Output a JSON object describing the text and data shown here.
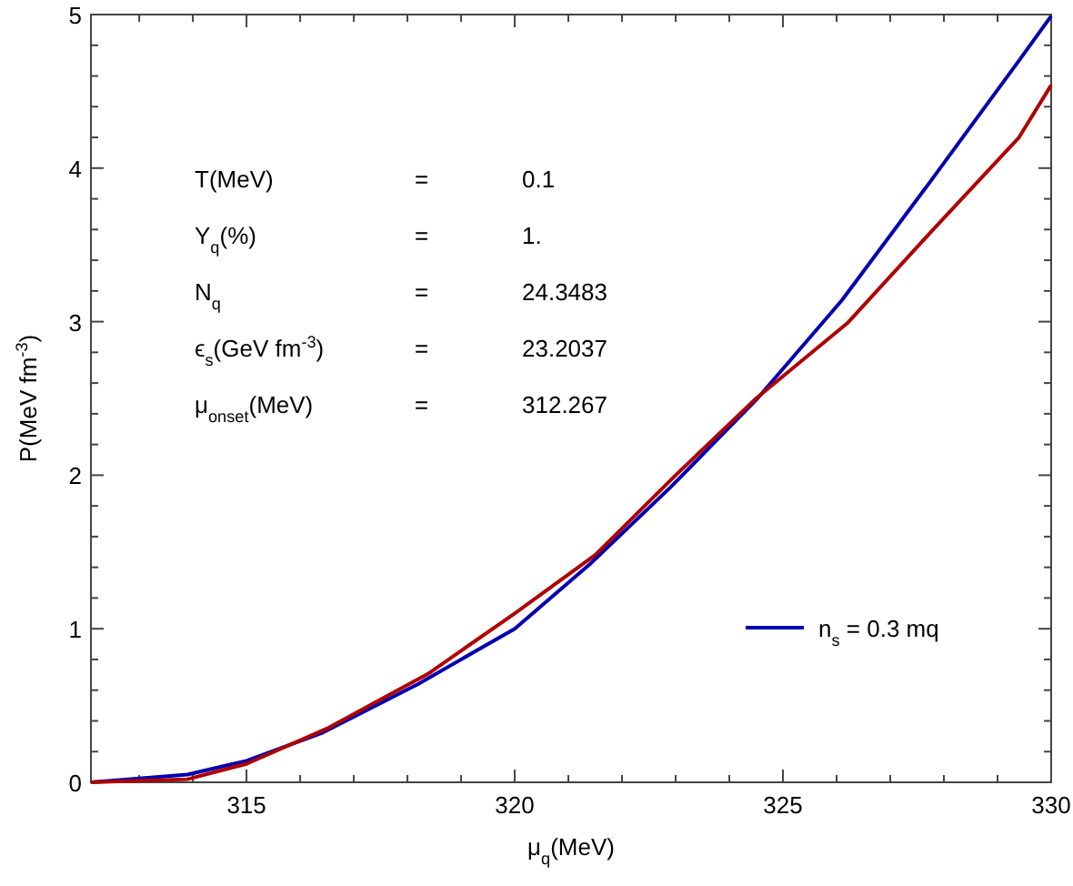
{
  "chart_data": {
    "type": "line",
    "xlabel": "μ$_{q}$(MeV)",
    "ylabel": "P(MeV fm$^{-3}$)",
    "xlim": [
      312.1,
      330
    ],
    "ylim": [
      0,
      5
    ],
    "xticks": [
      {
        "value": 313,
        "label": null
      },
      {
        "value": 314,
        "label": null
      },
      315,
      {
        "value": 316,
        "label": null
      },
      {
        "value": 317,
        "label": null
      },
      {
        "value": 318,
        "label": null
      },
      {
        "value": 319,
        "label": null
      },
      320,
      {
        "value": 321,
        "label": null
      },
      {
        "value": 322,
        "label": null
      },
      {
        "value": 323,
        "label": null
      },
      {
        "value": 324,
        "label": null
      },
      325,
      {
        "value": 326,
        "label": null
      },
      {
        "value": 327,
        "label": null
      },
      {
        "value": 328,
        "label": null
      },
      {
        "value": 329,
        "label": null
      },
      330
    ],
    "yticks": [
      0,
      {
        "value": 0.2,
        "label": null
      },
      {
        "value": 0.4,
        "label": null
      },
      {
        "value": 0.6,
        "label": null
      },
      {
        "value": 0.8,
        "label": null
      },
      1,
      {
        "value": 1.2,
        "label": null
      },
      {
        "value": 1.4,
        "label": null
      },
      {
        "value": 1.6,
        "label": null
      },
      {
        "value": 1.8,
        "label": null
      },
      2,
      {
        "value": 2.2,
        "label": null
      },
      {
        "value": 2.4,
        "label": null
      },
      {
        "value": 2.6,
        "label": null
      },
      {
        "value": 2.8,
        "label": null
      },
      3,
      {
        "value": 3.2,
        "label": null
      },
      {
        "value": 3.4,
        "label": null
      },
      {
        "value": 3.6,
        "label": null
      },
      {
        "value": 3.8,
        "label": null
      },
      4,
      {
        "value": 4.2,
        "label": null
      },
      {
        "value": 4.4,
        "label": null
      },
      {
        "value": 4.6,
        "label": null
      },
      {
        "value": 4.8,
        "label": null
      },
      5
    ],
    "series": [
      {
        "name": "n$_{s}$ = 0.3 mq",
        "color": "#0000b0",
        "x": [
          312.1,
          313.9,
          315,
          316.4,
          318.2,
          320,
          321.4,
          322.9,
          324.5,
          326.1,
          327.7,
          329.4,
          330
        ],
        "values": [
          0,
          0.05,
          0.14,
          0.32,
          0.64,
          1.0,
          1.42,
          1.92,
          2.49,
          3.14,
          3.89,
          4.7,
          4.99
        ]
      },
      {
        "color": "#b00000",
        "x": [
          312.1,
          313.9,
          315,
          316.5,
          318.4,
          320,
          321.5,
          323,
          324.5,
          326.2,
          327.8,
          329.4,
          330
        ],
        "values": [
          0,
          0.02,
          0.12,
          0.35,
          0.71,
          1.1,
          1.48,
          2.0,
          2.5,
          2.99,
          3.6,
          4.2,
          4.54
        ]
      }
    ],
    "legend": "bottom right",
    "marker": "none",
    "line_style": "solid",
    "grid": false,
    "annotations": [
      "T(MeV)",
      "=",
      "0.1",
      "Y$_{q}$(%)",
      "=",
      "1.",
      "N$_{q}$",
      "=",
      "24.3483",
      "ϵ$_{s}$(GeV fm$^{-3}$)",
      "=",
      "23.2037",
      "μ$_{onset}$(MeV)",
      "=",
      "312.267"
    ]
  }
}
